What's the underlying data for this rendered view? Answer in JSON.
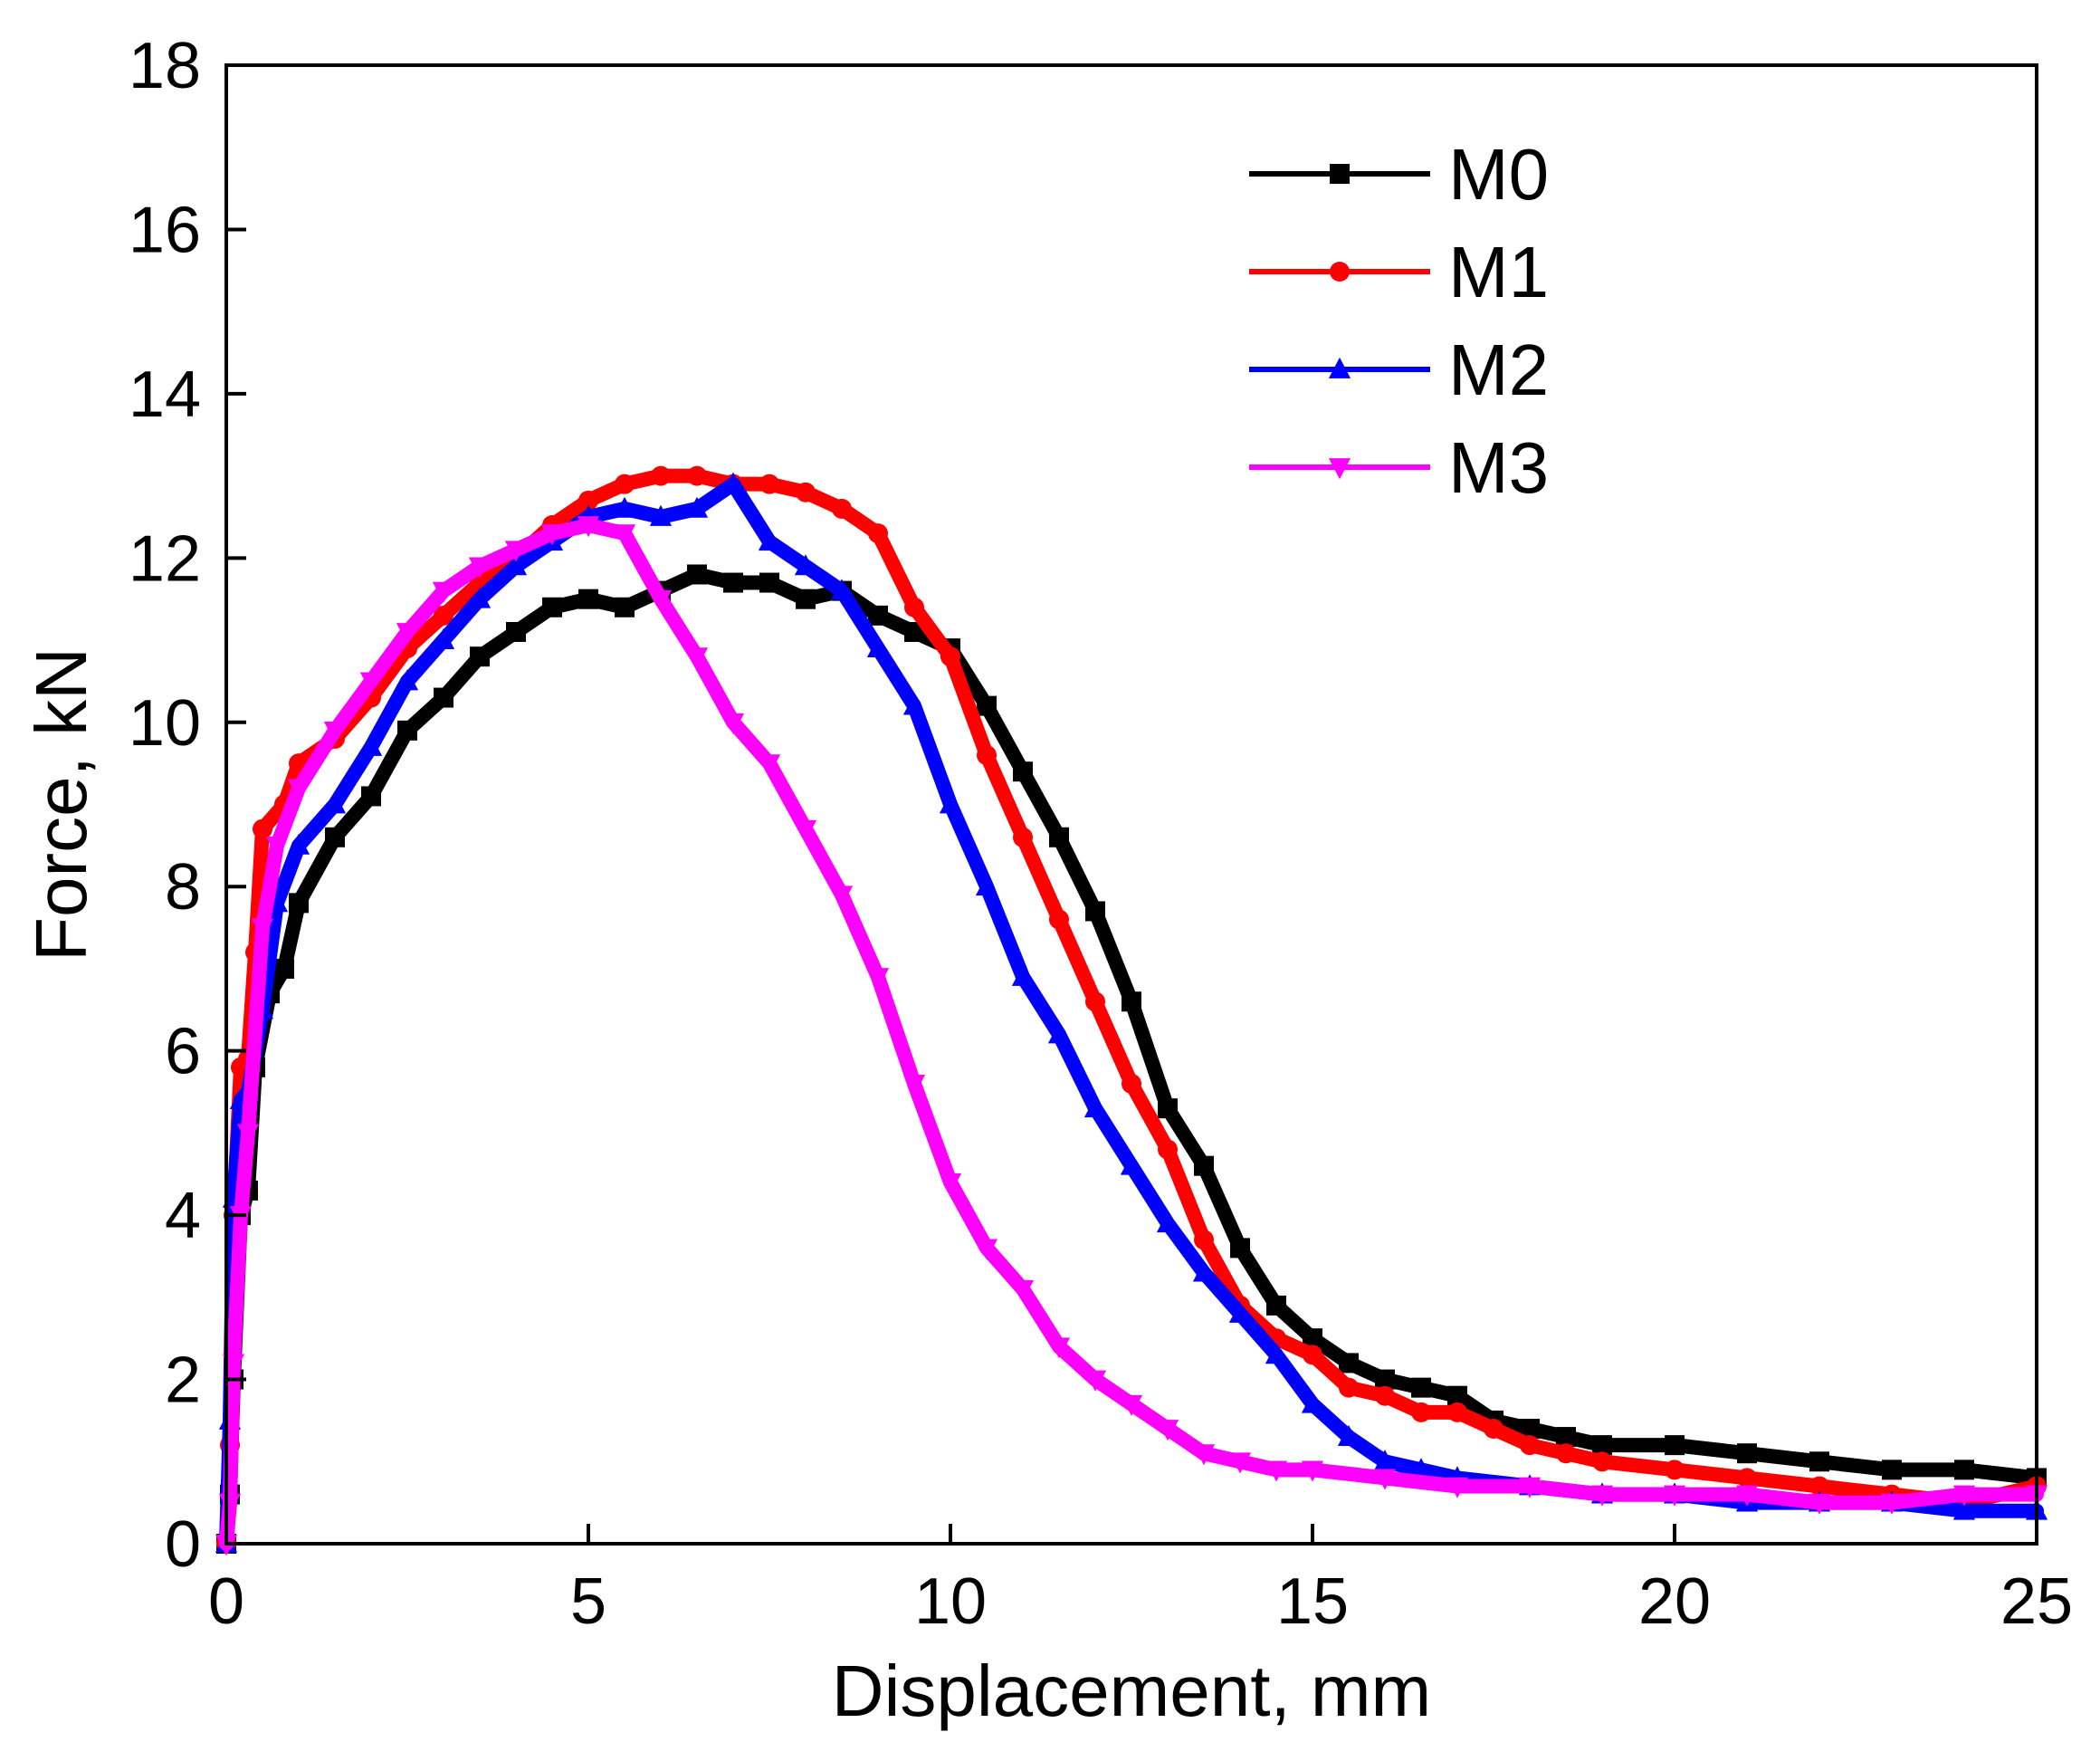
{
  "chart_data": {
    "type": "line",
    "title": "",
    "xlabel": "Displacement, mm",
    "ylabel": "Force, kN",
    "xlim": [
      0,
      25
    ],
    "ylim": [
      0,
      18
    ],
    "xticks": [
      0,
      5,
      10,
      15,
      20,
      25
    ],
    "yticks": [
      0,
      2,
      4,
      6,
      8,
      10,
      12,
      14,
      16,
      18
    ],
    "grid": false,
    "legend_position": "top-right",
    "series": [
      {
        "name": "M0",
        "color": "#000000",
        "marker": "square",
        "x": [
          0,
          0.05,
          0.1,
          0.2,
          0.3,
          0.4,
          0.6,
          0.8,
          1.0,
          1.5,
          2.0,
          2.5,
          3.0,
          3.5,
          4.0,
          4.5,
          5.0,
          5.5,
          6.0,
          6.5,
          7.0,
          7.5,
          8.0,
          8.5,
          9.0,
          9.5,
          10.0,
          10.5,
          11.0,
          11.5,
          12.0,
          12.5,
          13.0,
          13.5,
          14.0,
          14.5,
          15.0,
          15.5,
          16.0,
          16.5,
          17.0,
          17.5,
          18.0,
          18.5,
          19.0,
          20.0,
          21.0,
          22.0,
          23.0,
          24.0,
          25.0
        ],
        "y": [
          0,
          0.6,
          2.0,
          4.0,
          4.3,
          5.8,
          6.7,
          7.0,
          7.8,
          8.6,
          9.1,
          9.9,
          10.3,
          10.8,
          11.1,
          11.4,
          11.5,
          11.4,
          11.6,
          11.8,
          11.7,
          11.7,
          11.5,
          11.6,
          11.3,
          11.1,
          10.9,
          10.2,
          9.4,
          8.6,
          7.7,
          6.6,
          5.3,
          4.6,
          3.6,
          2.9,
          2.5,
          2.2,
          2.0,
          1.9,
          1.8,
          1.5,
          1.4,
          1.3,
          1.2,
          1.2,
          1.1,
          1.0,
          0.9,
          0.9,
          0.8
        ]
      },
      {
        "name": "M1",
        "color": "#ff0000",
        "marker": "circle",
        "x": [
          0,
          0.05,
          0.1,
          0.2,
          0.3,
          0.4,
          0.5,
          0.8,
          1.0,
          1.5,
          2.0,
          2.5,
          3.0,
          3.5,
          4.0,
          4.5,
          5.0,
          5.5,
          6.0,
          6.5,
          7.0,
          7.5,
          8.0,
          8.5,
          9.0,
          9.5,
          10.0,
          10.5,
          11.0,
          11.5,
          12.0,
          12.5,
          13.0,
          13.5,
          14.0,
          14.5,
          15.0,
          15.5,
          16.0,
          16.5,
          17.0,
          17.5,
          18.0,
          18.5,
          19.0,
          20.0,
          21.0,
          22.0,
          23.0,
          24.0,
          25.0
        ],
        "y": [
          0,
          1.2,
          4.0,
          5.8,
          5.9,
          7.2,
          8.7,
          9.0,
          9.5,
          9.8,
          10.3,
          10.9,
          11.3,
          11.7,
          12.0,
          12.4,
          12.7,
          12.9,
          13.0,
          13.0,
          12.9,
          12.9,
          12.8,
          12.6,
          12.3,
          11.4,
          10.8,
          9.6,
          8.6,
          7.6,
          6.6,
          5.6,
          4.8,
          3.7,
          2.9,
          2.5,
          2.3,
          1.9,
          1.8,
          1.6,
          1.6,
          1.4,
          1.2,
          1.1,
          1.0,
          0.9,
          0.8,
          0.7,
          0.6,
          0.5,
          0.7
        ]
      },
      {
        "name": "M2",
        "color": "#0000ff",
        "marker": "triangle-up",
        "x": [
          0,
          0.05,
          0.1,
          0.2,
          0.3,
          0.5,
          0.7,
          1.0,
          1.5,
          2.0,
          2.5,
          3.0,
          3.5,
          4.0,
          4.5,
          5.0,
          5.5,
          6.0,
          6.5,
          7.0,
          7.5,
          8.0,
          8.5,
          9.0,
          9.5,
          10.0,
          10.5,
          11.0,
          11.5,
          12.0,
          12.5,
          13.0,
          13.5,
          14.0,
          14.5,
          15.0,
          15.5,
          16.0,
          16.5,
          17.0,
          18.0,
          19.0,
          20.0,
          21.0,
          22.0,
          23.0,
          24.0,
          25.0
        ],
        "y": [
          0,
          1.5,
          4.2,
          5.4,
          5.5,
          6.5,
          7.8,
          8.5,
          9.0,
          9.7,
          10.5,
          11.0,
          11.5,
          11.9,
          12.2,
          12.5,
          12.6,
          12.5,
          12.6,
          12.9,
          12.2,
          11.9,
          11.6,
          10.9,
          10.2,
          9.0,
          8.0,
          6.9,
          6.2,
          5.3,
          4.6,
          3.9,
          3.3,
          2.8,
          2.3,
          1.7,
          1.3,
          1.0,
          0.9,
          0.8,
          0.7,
          0.6,
          0.6,
          0.5,
          0.5,
          0.5,
          0.4,
          0.4
        ]
      },
      {
        "name": "M3",
        "color": "#ff00ff",
        "marker": "triangle-down",
        "x": [
          0,
          0.05,
          0.1,
          0.2,
          0.3,
          0.5,
          0.7,
          1.0,
          1.5,
          2.0,
          2.5,
          3.0,
          3.5,
          4.0,
          4.5,
          5.0,
          5.5,
          6.0,
          6.5,
          7.0,
          7.5,
          8.0,
          8.5,
          9.0,
          9.5,
          10.0,
          10.5,
          11.0,
          11.5,
          12.0,
          12.5,
          13.0,
          13.5,
          14.0,
          14.5,
          15.0,
          16.0,
          17.0,
          18.0,
          19.0,
          20.0,
          21.0,
          22.0,
          23.0,
          24.0,
          25.0
        ],
        "y": [
          0,
          0.5,
          2.2,
          4.0,
          5.0,
          7.5,
          8.5,
          9.2,
          9.9,
          10.5,
          11.1,
          11.6,
          11.9,
          12.1,
          12.3,
          12.4,
          12.3,
          11.5,
          10.8,
          10.0,
          9.5,
          8.7,
          7.9,
          6.9,
          5.6,
          4.4,
          3.6,
          3.1,
          2.4,
          2.0,
          1.7,
          1.4,
          1.1,
          1.0,
          0.9,
          0.9,
          0.8,
          0.7,
          0.7,
          0.6,
          0.6,
          0.6,
          0.5,
          0.5,
          0.6,
          0.6
        ]
      }
    ]
  }
}
